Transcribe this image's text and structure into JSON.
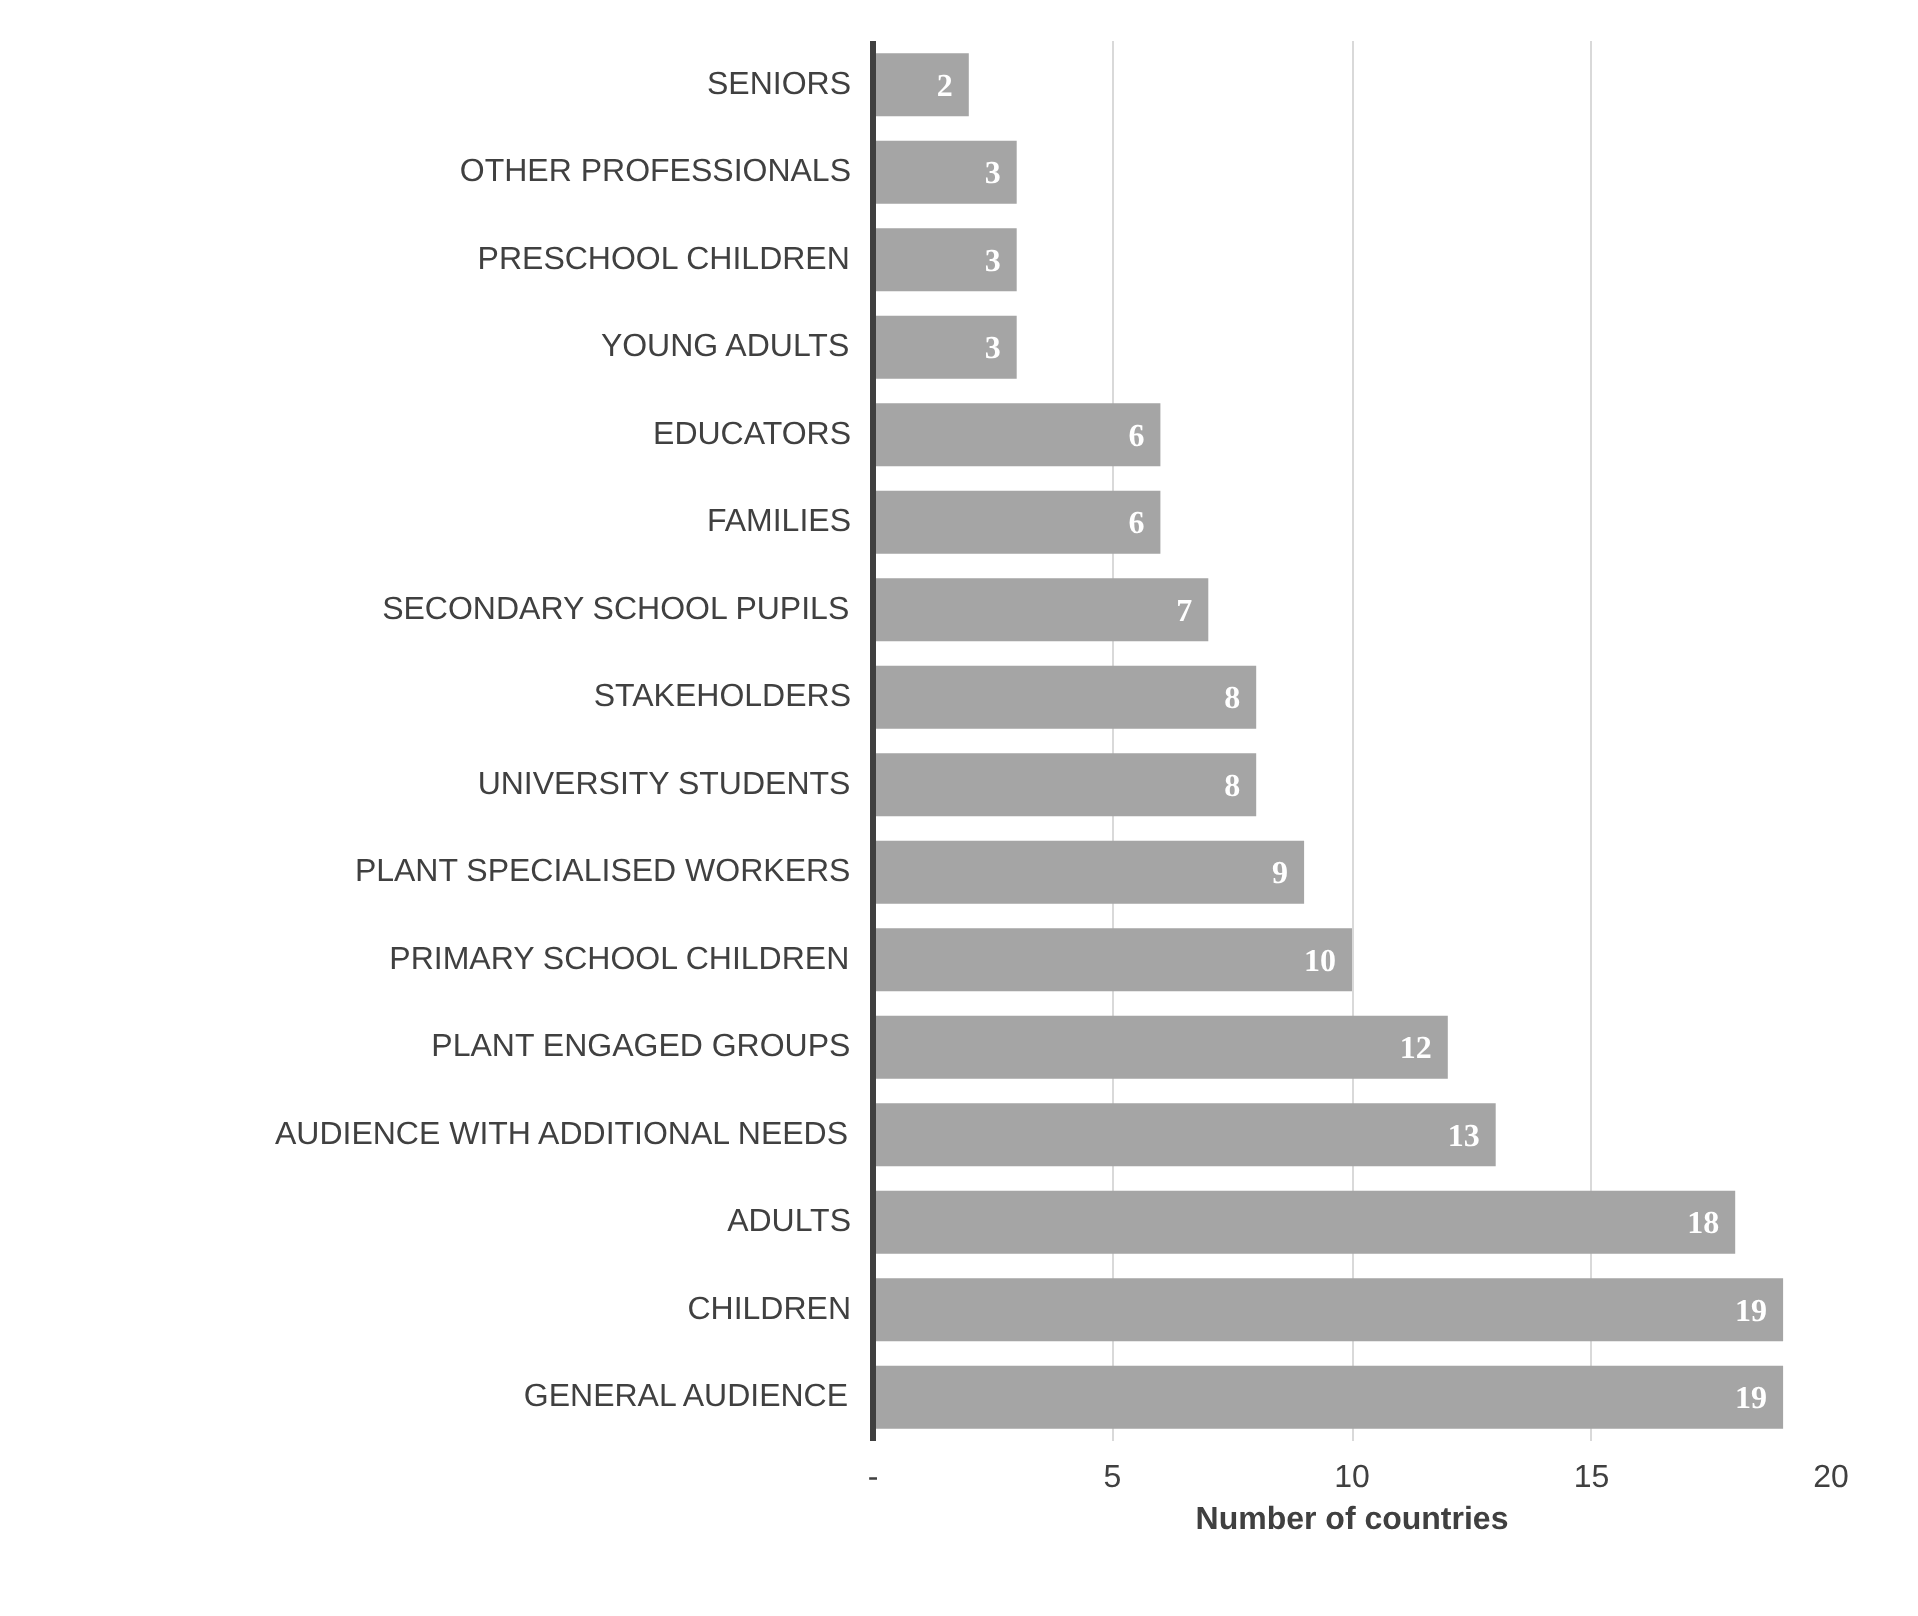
{
  "chart_data": {
    "type": "bar",
    "orientation": "horizontal",
    "xlabel": "Number of countries",
    "categories": [
      "SENIORS",
      "OTHER PROFESSIONALS",
      "PRESCHOOL CHILDREN",
      "YOUNG ADULTS",
      "EDUCATORS",
      "FAMILIES",
      "SECONDARY SCHOOL PUPILS",
      "STAKEHOLDERS",
      "UNIVERSITY STUDENTS",
      "PLANT SPECIALISED WORKERS",
      "PRIMARY SCHOOL CHILDREN",
      "PLANT ENGAGED GROUPS",
      "AUDIENCE WITH ADDITIONAL NEEDS",
      "ADULTS",
      "CHILDREN",
      "GENERAL AUDIENCE"
    ],
    "values": [
      2,
      3,
      3,
      3,
      6,
      6,
      7,
      8,
      8,
      9,
      10,
      12,
      13,
      18,
      19,
      19
    ],
    "color": "#a5a5a5",
    "data_labels": true,
    "grid": "x",
    "xlim": [
      0,
      20
    ],
    "xticks": [
      {
        "value": 0,
        "label": "-"
      },
      5,
      10,
      15,
      20
    ]
  }
}
